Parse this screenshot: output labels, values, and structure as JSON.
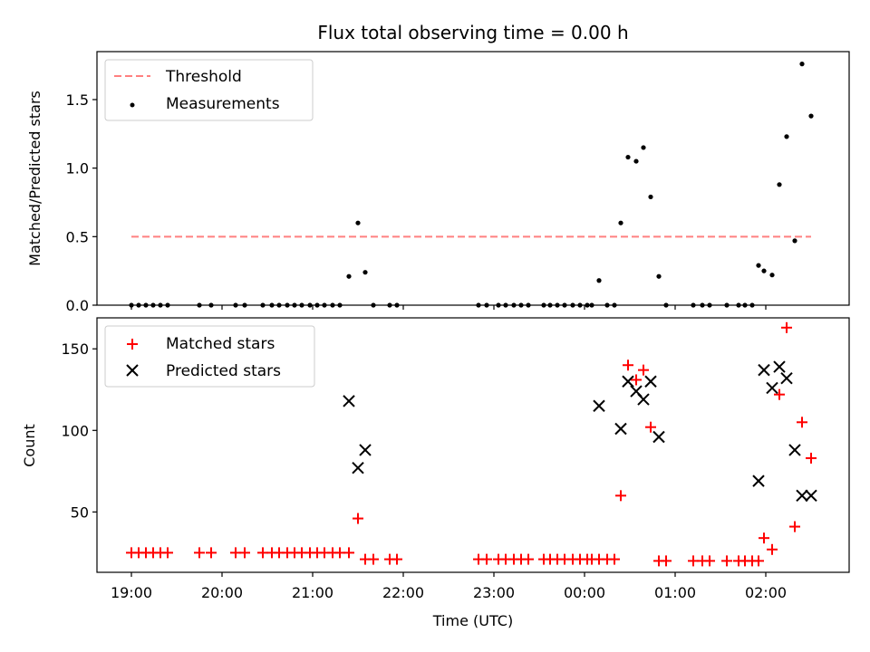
{
  "chart_data": [
    {
      "type": "scatter",
      "title": "Flux total observing time = 0.00 h",
      "ylabel": "Matched/Predicted stars",
      "xlabel": "",
      "ylim": [
        0,
        1.85
      ],
      "yticks": [
        0.0,
        0.5,
        1.0,
        1.5
      ],
      "ytick_labels": [
        "0.0",
        "0.5",
        "1.0",
        "1.5"
      ],
      "xlim": [
        -0.38,
        7.92
      ],
      "threshold": {
        "name": "Threshold",
        "value": 0.5,
        "x": [
          0,
          7.5
        ],
        "color": "#ff8080"
      },
      "legend": {
        "location": "top-left",
        "entries": [
          "Threshold",
          "Measurements"
        ]
      },
      "series": [
        {
          "name": "Measurements",
          "color": "#000000",
          "points": [
            [
              0.0,
              0
            ],
            [
              0.08,
              0
            ],
            [
              0.16,
              0
            ],
            [
              0.24,
              0
            ],
            [
              0.32,
              0
            ],
            [
              0.4,
              0
            ],
            [
              0.75,
              0
            ],
            [
              0.88,
              0
            ],
            [
              1.15,
              0
            ],
            [
              1.25,
              0
            ],
            [
              1.45,
              0
            ],
            [
              1.55,
              0
            ],
            [
              1.63,
              0
            ],
            [
              1.72,
              0
            ],
            [
              1.8,
              0
            ],
            [
              1.88,
              0
            ],
            [
              1.97,
              0
            ],
            [
              2.05,
              0
            ],
            [
              2.13,
              0
            ],
            [
              2.22,
              0
            ],
            [
              2.3,
              0
            ],
            [
              2.4,
              0.21
            ],
            [
              2.5,
              0.6
            ],
            [
              2.58,
              0.24
            ],
            [
              2.67,
              0
            ],
            [
              2.85,
              0
            ],
            [
              2.93,
              0
            ],
            [
              3.83,
              0
            ],
            [
              3.92,
              0
            ],
            [
              4.05,
              0
            ],
            [
              4.13,
              0
            ],
            [
              4.22,
              0
            ],
            [
              4.3,
              0
            ],
            [
              4.38,
              0
            ],
            [
              4.55,
              0
            ],
            [
              4.62,
              0
            ],
            [
              4.7,
              0
            ],
            [
              4.78,
              0
            ],
            [
              4.87,
              0
            ],
            [
              4.95,
              0
            ],
            [
              5.03,
              0
            ],
            [
              5.08,
              0
            ],
            [
              5.16,
              0.18
            ],
            [
              5.25,
              0
            ],
            [
              5.33,
              0
            ],
            [
              5.4,
              0.6
            ],
            [
              5.48,
              1.08
            ],
            [
              5.57,
              1.05
            ],
            [
              5.65,
              1.15
            ],
            [
              5.73,
              0.79
            ],
            [
              5.82,
              0.21
            ],
            [
              5.9,
              0
            ],
            [
              6.2,
              0
            ],
            [
              6.3,
              0
            ],
            [
              6.38,
              0
            ],
            [
              6.57,
              0
            ],
            [
              6.7,
              0
            ],
            [
              6.77,
              0
            ],
            [
              6.85,
              0
            ],
            [
              6.92,
              0.29
            ],
            [
              6.98,
              0.25
            ],
            [
              7.07,
              0.22
            ],
            [
              7.15,
              0.88
            ],
            [
              7.23,
              1.23
            ],
            [
              7.32,
              0.47
            ],
            [
              7.4,
              1.76
            ],
            [
              7.5,
              1.38
            ]
          ]
        }
      ]
    },
    {
      "type": "scatter",
      "title": "",
      "xlabel": "Time (UTC)",
      "ylabel": "Count",
      "ylim": [
        13,
        169
      ],
      "yticks": [
        50,
        100,
        150
      ],
      "ytick_labels": [
        "50",
        "100",
        "150"
      ],
      "xlim": [
        -0.38,
        7.92
      ],
      "xticks": [
        0,
        1,
        2,
        3,
        4,
        5,
        6,
        7
      ],
      "xtick_labels": [
        "19:00",
        "20:00",
        "21:00",
        "22:00",
        "23:00",
        "00:00",
        "01:00",
        "02:00"
      ],
      "legend": {
        "location": "top-left",
        "entries": [
          "Matched stars",
          "Predicted stars"
        ]
      },
      "series": [
        {
          "name": "Matched stars",
          "marker": "plus",
          "color": "#ff0000",
          "points": [
            [
              0.0,
              25
            ],
            [
              0.08,
              25
            ],
            [
              0.16,
              25
            ],
            [
              0.24,
              25
            ],
            [
              0.32,
              25
            ],
            [
              0.4,
              25
            ],
            [
              0.75,
              25
            ],
            [
              0.88,
              25
            ],
            [
              1.15,
              25
            ],
            [
              1.25,
              25
            ],
            [
              1.45,
              25
            ],
            [
              1.55,
              25
            ],
            [
              1.63,
              25
            ],
            [
              1.72,
              25
            ],
            [
              1.8,
              25
            ],
            [
              1.88,
              25
            ],
            [
              1.97,
              25
            ],
            [
              2.05,
              25
            ],
            [
              2.13,
              25
            ],
            [
              2.22,
              25
            ],
            [
              2.3,
              25
            ],
            [
              2.4,
              25
            ],
            [
              2.5,
              46
            ],
            [
              2.58,
              21
            ],
            [
              2.67,
              21
            ],
            [
              2.85,
              21
            ],
            [
              2.93,
              21
            ],
            [
              3.83,
              21
            ],
            [
              3.92,
              21
            ],
            [
              4.05,
              21
            ],
            [
              4.13,
              21
            ],
            [
              4.22,
              21
            ],
            [
              4.3,
              21
            ],
            [
              4.38,
              21
            ],
            [
              4.55,
              21
            ],
            [
              4.62,
              21
            ],
            [
              4.7,
              21
            ],
            [
              4.78,
              21
            ],
            [
              4.87,
              21
            ],
            [
              4.95,
              21
            ],
            [
              5.03,
              21
            ],
            [
              5.08,
              21
            ],
            [
              5.16,
              21
            ],
            [
              5.25,
              21
            ],
            [
              5.33,
              21
            ],
            [
              5.4,
              60
            ],
            [
              5.48,
              140
            ],
            [
              5.57,
              131
            ],
            [
              5.65,
              137
            ],
            [
              5.73,
              102
            ],
            [
              5.82,
              20
            ],
            [
              5.9,
              20
            ],
            [
              6.2,
              20
            ],
            [
              6.3,
              20
            ],
            [
              6.38,
              20
            ],
            [
              6.57,
              20
            ],
            [
              6.7,
              20
            ],
            [
              6.77,
              20
            ],
            [
              6.85,
              20
            ],
            [
              6.92,
              20
            ],
            [
              6.98,
              34
            ],
            [
              7.07,
              27
            ],
            [
              7.15,
              122
            ],
            [
              7.23,
              163
            ],
            [
              7.32,
              41
            ],
            [
              7.4,
              105
            ],
            [
              7.5,
              83
            ]
          ]
        },
        {
          "name": "Predicted stars",
          "marker": "x",
          "color": "#000000",
          "points": [
            [
              2.4,
              118
            ],
            [
              2.5,
              77
            ],
            [
              2.58,
              88
            ],
            [
              5.16,
              115
            ],
            [
              5.4,
              101
            ],
            [
              5.48,
              130
            ],
            [
              5.57,
              124
            ],
            [
              5.65,
              119
            ],
            [
              5.73,
              130
            ],
            [
              5.82,
              96
            ],
            [
              6.92,
              69
            ],
            [
              6.98,
              137
            ],
            [
              7.07,
              126
            ],
            [
              7.15,
              139
            ],
            [
              7.23,
              132
            ],
            [
              7.32,
              88
            ],
            [
              7.4,
              60
            ],
            [
              7.5,
              60
            ]
          ]
        }
      ]
    }
  ]
}
